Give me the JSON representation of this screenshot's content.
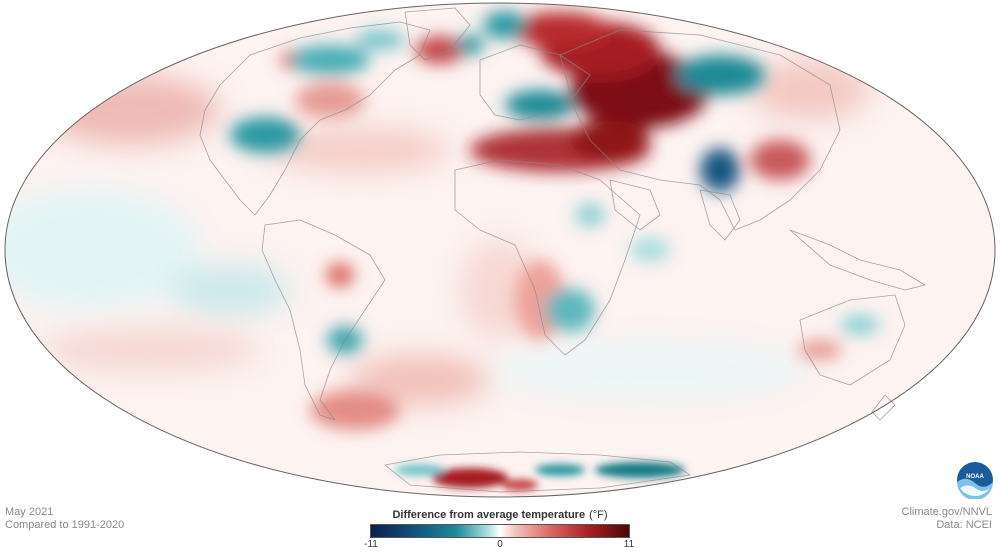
{
  "footer": {
    "date": "May 2021",
    "baseline": "Compared to 1991-2020",
    "source_site": "Climate.gov/NNVL",
    "source_data": "Data: NCEI"
  },
  "legend": {
    "title": "Difference from average temperature",
    "unit": "(°F)",
    "min_label": "-11",
    "mid_label": "0",
    "max_label": "11",
    "min": -11,
    "max": 11,
    "colors": [
      "#0b1f4d",
      "#14557f",
      "#1f8a96",
      "#a8dde0",
      "#ffffff",
      "#f4c2bb",
      "#d9665f",
      "#a51d23",
      "#4b0707"
    ]
  },
  "logo": {
    "text": "NOAA",
    "icon": "noaa-logo-icon"
  },
  "map": {
    "projection": "Mollweide",
    "colors": {
      "warm": "#a51d23",
      "cool": "#147b86",
      "outline": "#888888"
    }
  }
}
